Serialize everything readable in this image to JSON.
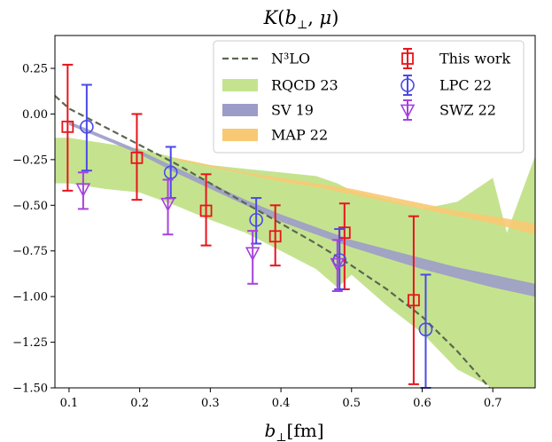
{
  "chart_data": {
    "type": "line",
    "title": "K(b⊥, μ)",
    "xlabel": "b⊥[fm]",
    "ylabel": "",
    "xlim": [
      0.08,
      0.76
    ],
    "ylim": [
      -1.5,
      0.43
    ],
    "x_ticks": [
      0.1,
      0.2,
      0.3,
      0.4,
      0.5,
      0.6,
      0.7
    ],
    "x_tick_labels": [
      "0.1",
      "0.2",
      "0.3",
      "0.4",
      "0.5",
      "0.6",
      "0.7"
    ],
    "y_ticks": [
      0.25,
      0.0,
      -0.25,
      -0.5,
      -0.75,
      -1.0,
      -1.25,
      -1.5
    ],
    "y_tick_labels": [
      "0.25",
      "0.00",
      "−0.25",
      "−0.50",
      "−0.75",
      "−1.00",
      "−1.25",
      "−1.50"
    ],
    "grid": false,
    "legend_position": "top-right",
    "legend": [
      {
        "key": "n3lo",
        "label": "N³LO"
      },
      {
        "key": "rqcd",
        "label": "RQCD 23"
      },
      {
        "key": "sv19",
        "label": "SV 19"
      },
      {
        "key": "map22",
        "label": "MAP 22"
      },
      {
        "key": "this_work",
        "label": "This work"
      },
      {
        "key": "lpc22",
        "label": "LPC 22"
      },
      {
        "key": "swz22",
        "label": "SWZ 22"
      }
    ],
    "colors": {
      "n3lo": "#5b6650",
      "rqcd": "#c5e38f",
      "sv19": "#9c9cc8",
      "map22": "#f8c973",
      "this_work": "#e8141c",
      "lpc22": "#4a4ae6",
      "swz22": "#a642dc"
    },
    "series": [
      {
        "name": "N³LO",
        "key": "n3lo",
        "kind": "line",
        "x": [
          0.08,
          0.1,
          0.15,
          0.2,
          0.25,
          0.3,
          0.35,
          0.4,
          0.45,
          0.5,
          0.55,
          0.6,
          0.65,
          0.7
        ],
        "y": [
          0.1,
          0.03,
          -0.07,
          -0.17,
          -0.27,
          -0.38,
          -0.49,
          -0.6,
          -0.71,
          -0.83,
          -0.96,
          -1.11,
          -1.3,
          -1.52
        ]
      },
      {
        "name": "RQCD 23",
        "key": "rqcd",
        "kind": "band",
        "x": [
          0.08,
          0.1,
          0.15,
          0.2,
          0.25,
          0.3,
          0.35,
          0.4,
          0.45,
          0.48,
          0.5,
          0.55,
          0.6,
          0.65,
          0.7,
          0.72,
          0.76
        ],
        "upper": [
          -0.13,
          -0.13,
          -0.16,
          -0.19,
          -0.24,
          -0.28,
          -0.3,
          -0.32,
          -0.34,
          -0.38,
          -0.42,
          -0.47,
          -0.52,
          -0.48,
          -0.35,
          -0.65,
          -0.23
        ],
        "lower": [
          -0.38,
          -0.38,
          -0.41,
          -0.43,
          -0.5,
          -0.58,
          -0.65,
          -0.75,
          -0.85,
          -0.95,
          -0.88,
          -1.05,
          -1.2,
          -1.4,
          -1.5,
          -1.5,
          -1.5
        ]
      },
      {
        "name": "SV 19",
        "key": "sv19",
        "kind": "band",
        "x": [
          0.1,
          0.15,
          0.2,
          0.25,
          0.3,
          0.35,
          0.4,
          0.45,
          0.5,
          0.55,
          0.6,
          0.65,
          0.7,
          0.76
        ],
        "upper": [
          -0.04,
          -0.12,
          -0.2,
          -0.29,
          -0.38,
          -0.47,
          -0.55,
          -0.62,
          -0.69,
          -0.74,
          -0.79,
          -0.84,
          -0.88,
          -0.93
        ],
        "lower": [
          -0.06,
          -0.14,
          -0.22,
          -0.32,
          -0.41,
          -0.5,
          -0.59,
          -0.66,
          -0.73,
          -0.79,
          -0.85,
          -0.9,
          -0.95,
          -1.0
        ]
      },
      {
        "name": "MAP 22",
        "key": "map22",
        "kind": "band",
        "x": [
          0.25,
          0.3,
          0.35,
          0.4,
          0.45,
          0.5,
          0.55,
          0.6,
          0.65,
          0.7,
          0.76
        ],
        "upper": [
          -0.24,
          -0.28,
          -0.32,
          -0.35,
          -0.38,
          -0.41,
          -0.45,
          -0.49,
          -0.53,
          -0.56,
          -0.6
        ],
        "lower": [
          -0.25,
          -0.29,
          -0.33,
          -0.37,
          -0.4,
          -0.44,
          -0.48,
          -0.52,
          -0.56,
          -0.6,
          -0.66
        ]
      },
      {
        "name": "This work",
        "key": "this_work",
        "kind": "errorbar",
        "marker": "square",
        "x": [
          0.098,
          0.196,
          0.294,
          0.392,
          0.49,
          0.588
        ],
        "y": [
          -0.07,
          -0.24,
          -0.53,
          -0.67,
          -0.65,
          -1.02
        ],
        "err_low": [
          -0.42,
          -0.47,
          -0.72,
          -0.83,
          -0.96,
          -1.48
        ],
        "err_high": [
          0.27,
          0.0,
          -0.33,
          -0.5,
          -0.49,
          -0.56
        ]
      },
      {
        "name": "LPC 22",
        "key": "lpc22",
        "kind": "errorbar",
        "marker": "circle",
        "x": [
          0.125,
          0.244,
          0.365,
          0.483,
          0.605
        ],
        "y": [
          -0.07,
          -0.32,
          -0.58,
          -0.8,
          -1.18
        ],
        "err_low": [
          -0.31,
          -0.46,
          -0.71,
          -0.96,
          -1.5
        ],
        "err_high": [
          0.16,
          -0.18,
          -0.46,
          -0.63,
          -0.88
        ]
      },
      {
        "name": "SWZ 22",
        "key": "swz22",
        "kind": "errorbar",
        "marker": "triangle-down",
        "x": [
          0.12,
          0.24,
          0.36,
          0.48
        ],
        "y": [
          -0.41,
          -0.49,
          -0.76,
          -0.82
        ],
        "err_low": [
          -0.52,
          -0.66,
          -0.93,
          -0.97
        ],
        "err_high": [
          -0.32,
          -0.36,
          -0.64,
          -0.69
        ]
      }
    ]
  }
}
